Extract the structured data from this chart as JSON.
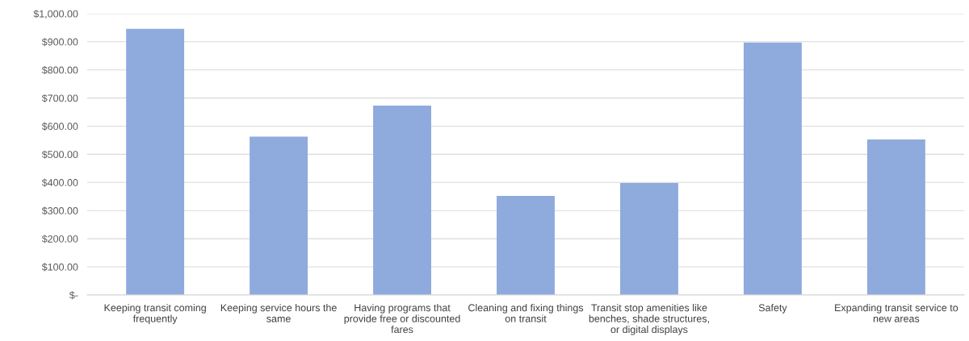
{
  "chart_data": {
    "type": "bar",
    "categories": [
      "Keeping transit coming\nfrequently",
      "Keeping service hours the\nsame",
      "Having programs that\nprovide free or discounted\nfares",
      "Cleaning and fixing things\non transit",
      "Transit stop amenities like\nbenches, shade structures,\nor digital displays",
      "Safety",
      "Expanding transit service to\nnew areas"
    ],
    "values": [
      946,
      563,
      673,
      352,
      398,
      897,
      553
    ],
    "color": "#8faadc",
    "ylim": [
      0,
      1000
    ],
    "yticks": [
      {
        "value": 0,
        "label": "$-"
      },
      {
        "value": 100,
        "label": "$100.00"
      },
      {
        "value": 200,
        "label": "$200.00"
      },
      {
        "value": 300,
        "label": "$300.00"
      },
      {
        "value": 400,
        "label": "$400.00"
      },
      {
        "value": 500,
        "label": "$500.00"
      },
      {
        "value": 600,
        "label": "$600.00"
      },
      {
        "value": 700,
        "label": "$700.00"
      },
      {
        "value": 800,
        "label": "$800.00"
      },
      {
        "value": 900,
        "label": "$900.00"
      },
      {
        "value": 1000,
        "label": "$1,000.00"
      }
    ],
    "grid": "y"
  }
}
